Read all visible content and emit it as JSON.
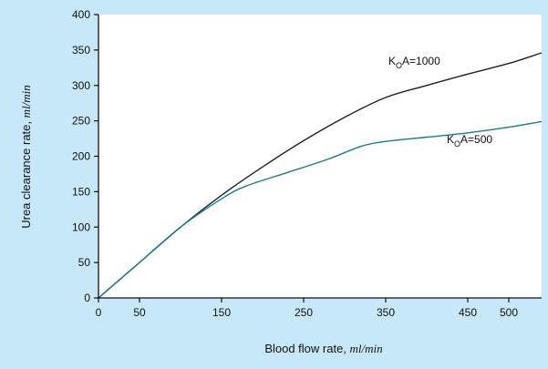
{
  "chart_data": {
    "type": "line",
    "xlabel": "Blood flow rate,",
    "xlabel_unit": "ml/min",
    "ylabel": "Urea clearance rate,",
    "ylabel_unit": "ml/min",
    "x_ticks": [
      0,
      50,
      150,
      250,
      350,
      450,
      500
    ],
    "y_ticks": [
      0,
      50,
      100,
      150,
      200,
      250,
      300,
      350,
      400
    ],
    "xlim": [
      0,
      540
    ],
    "ylim": [
      0,
      400
    ],
    "grid": false,
    "series": [
      {
        "name": "K_OA=1000",
        "label_main": "K",
        "label_sub": "O",
        "label_rest": "A=1000",
        "color": "#222222",
        "x": [
          0,
          50,
          100,
          150,
          200,
          250,
          300,
          350,
          400,
          450,
          500,
          540
        ],
        "y": [
          0,
          50,
          100,
          145,
          185,
          222,
          255,
          283,
          300,
          316,
          331,
          346
        ]
      },
      {
        "name": "K_OA=500",
        "label_main": "K",
        "label_sub": "O",
        "label_rest": "A=500",
        "color": "#1a7a92",
        "x": [
          0,
          50,
          100,
          150,
          180,
          230,
          280,
          320,
          350,
          400,
          450,
          500,
          540
        ],
        "y": [
          0,
          50,
          100,
          140,
          158,
          177,
          196,
          214,
          221,
          227,
          233,
          241,
          249
        ]
      }
    ]
  }
}
